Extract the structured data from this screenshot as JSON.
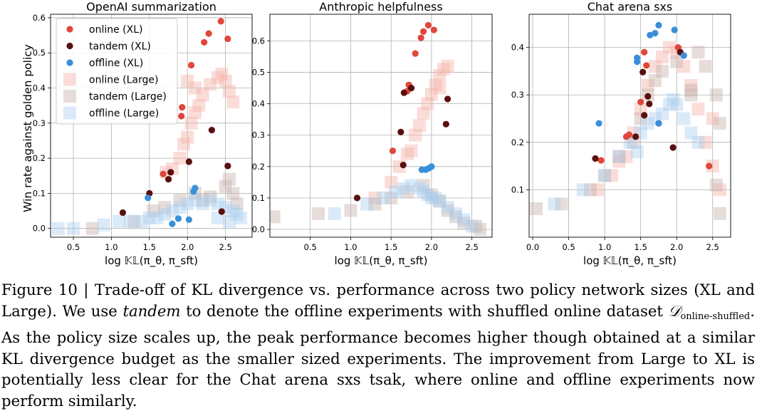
{
  "figure": {
    "ylabel": "Win rate against golden policy",
    "xlabel": "log 𝕂𝕃(π_θ, π_sft)",
    "legend_labels": [
      "online (XL)",
      "tandem (XL)",
      "offline (XL)",
      "online (Large)",
      "tandem (Large)",
      "offline (Large)"
    ],
    "colors": {
      "online_xl": "#e0473a",
      "tandem_xl": "#5a0f0f",
      "offline_xl": "#3a8fd9",
      "online_large": "#f5b3aa",
      "tandem_large": "#c7b3ad",
      "offline_large": "#a9cdef"
    }
  },
  "chart_data": [
    {
      "type": "scatter",
      "title": "OpenAI summarization",
      "xlim": [
        0.2,
        2.85
      ],
      "ylim": [
        -0.025,
        0.61
      ],
      "xticks": [
        0.5,
        1.0,
        1.5,
        2.0,
        2.5
      ],
      "yticks": [
        0.0,
        0.1,
        0.2,
        0.3,
        0.4,
        0.5,
        0.6
      ],
      "grid": true,
      "legend": "top-left",
      "series": [
        {
          "name": "online (Large)",
          "key": "online_large",
          "marker": "square",
          "points": [
            [
              1.72,
              0.16
            ],
            [
              1.8,
              0.17
            ],
            [
              1.9,
              0.2
            ],
            [
              1.95,
              0.24
            ],
            [
              2.0,
              0.26
            ],
            [
              2.05,
              0.3
            ],
            [
              2.1,
              0.33
            ],
            [
              2.15,
              0.35
            ],
            [
              2.2,
              0.38
            ],
            [
              2.3,
              0.41
            ],
            [
              2.4,
              0.43
            ],
            [
              2.45,
              0.44
            ],
            [
              2.5,
              0.42
            ],
            [
              2.55,
              0.39
            ],
            [
              2.6,
              0.36
            ],
            [
              2.0,
              0.42
            ],
            [
              2.1,
              0.4
            ]
          ]
        },
        {
          "name": "tandem (Large)",
          "key": "tandem_large",
          "marker": "square",
          "points": [
            [
              0.75,
              0.0
            ],
            [
              1.3,
              0.02
            ],
            [
              1.55,
              0.05
            ],
            [
              1.7,
              0.06
            ],
            [
              1.9,
              0.08
            ],
            [
              2.1,
              0.1
            ],
            [
              2.3,
              0.09
            ],
            [
              2.5,
              0.12
            ],
            [
              2.55,
              0.14
            ],
            [
              2.6,
              0.1
            ],
            [
              2.65,
              0.07
            ],
            [
              2.2,
              0.08
            ]
          ]
        },
        {
          "name": "offline (Large)",
          "key": "offline_large",
          "marker": "square",
          "points": [
            [
              0.3,
              0.0
            ],
            [
              0.5,
              0.0
            ],
            [
              0.9,
              0.01
            ],
            [
              1.1,
              0.02
            ],
            [
              1.25,
              0.02
            ],
            [
              1.4,
              0.02
            ],
            [
              1.5,
              0.03
            ],
            [
              1.6,
              0.03
            ],
            [
              1.7,
              0.04
            ],
            [
              1.8,
              0.05
            ],
            [
              1.9,
              0.06
            ],
            [
              2.0,
              0.07
            ],
            [
              2.1,
              0.08
            ],
            [
              2.2,
              0.07
            ],
            [
              2.3,
              0.08
            ],
            [
              2.4,
              0.07
            ],
            [
              2.5,
              0.06
            ],
            [
              2.6,
              0.05
            ],
            [
              2.65,
              0.04
            ],
            [
              2.7,
              0.03
            ],
            [
              2.55,
              0.02
            ],
            [
              2.4,
              0.03
            ]
          ]
        },
        {
          "name": "online (XL)",
          "key": "online_xl",
          "marker": "circle",
          "points": [
            [
              1.68,
              0.155
            ],
            [
              1.92,
              0.32
            ],
            [
              1.93,
              0.345
            ],
            [
              2.05,
              0.465
            ],
            [
              2.22,
              0.53
            ],
            [
              2.28,
              0.555
            ],
            [
              2.44,
              0.59
            ],
            [
              2.53,
              0.54
            ]
          ]
        },
        {
          "name": "tandem (XL)",
          "key": "tandem_xl",
          "marker": "circle",
          "points": [
            [
              1.15,
              0.045
            ],
            [
              1.5,
              0.1
            ],
            [
              1.75,
              0.14
            ],
            [
              1.78,
              0.16
            ],
            [
              2.02,
              0.19
            ],
            [
              2.32,
              0.28
            ],
            [
              2.45,
              0.048
            ],
            [
              2.53,
              0.178
            ]
          ]
        },
        {
          "name": "offline (XL)",
          "key": "offline_xl",
          "marker": "circle",
          "points": [
            [
              1.48,
              0.087
            ],
            [
              1.8,
              0.013
            ],
            [
              1.88,
              0.028
            ],
            [
              2.02,
              0.025
            ],
            [
              2.08,
              0.105
            ],
            [
              2.1,
              0.115
            ]
          ]
        }
      ]
    },
    {
      "type": "scatter",
      "title": "Anthropic helpfulness",
      "xlim": [
        0.0,
        2.75
      ],
      "ylim": [
        -0.025,
        0.685
      ],
      "xticks": [
        0.5,
        1.0,
        1.5,
        2.0,
        2.5
      ],
      "yticks": [
        0.0,
        0.1,
        0.2,
        0.3,
        0.4,
        0.5,
        0.6
      ],
      "grid": true,
      "series": [
        {
          "name": "online (Large)",
          "key": "online_large",
          "marker": "square",
          "points": [
            [
              1.3,
              0.1
            ],
            [
              1.5,
              0.15
            ],
            [
              1.6,
              0.2
            ],
            [
              1.7,
              0.24
            ],
            [
              1.8,
              0.3
            ],
            [
              1.85,
              0.33
            ],
            [
              1.9,
              0.37
            ],
            [
              1.95,
              0.4
            ],
            [
              2.0,
              0.43
            ],
            [
              2.05,
              0.46
            ],
            [
              2.1,
              0.49
            ],
            [
              2.15,
              0.51
            ],
            [
              2.2,
              0.52
            ],
            [
              2.1,
              0.45
            ],
            [
              1.75,
              0.25
            ]
          ]
        },
        {
          "name": "tandem (Large)",
          "key": "tandem_large",
          "marker": "square",
          "points": [
            [
              0.05,
              0.04
            ],
            [
              0.6,
              0.05
            ],
            [
              1.0,
              0.06
            ],
            [
              1.3,
              0.08
            ],
            [
              1.5,
              0.1
            ],
            [
              1.7,
              0.12
            ],
            [
              1.9,
              0.14
            ],
            [
              2.0,
              0.11
            ],
            [
              2.1,
              0.09
            ],
            [
              2.2,
              0.06
            ],
            [
              2.3,
              0.04
            ],
            [
              2.4,
              0.02
            ],
            [
              2.55,
              0.01
            ],
            [
              2.6,
              0.0
            ]
          ]
        },
        {
          "name": "offline (Large)",
          "key": "offline_large",
          "marker": "square",
          "points": [
            [
              0.8,
              0.05
            ],
            [
              1.2,
              0.08
            ],
            [
              1.4,
              0.1
            ],
            [
              1.55,
              0.12
            ],
            [
              1.65,
              0.13
            ],
            [
              1.75,
              0.14
            ],
            [
              1.85,
              0.13
            ],
            [
              1.9,
              0.12
            ],
            [
              1.95,
              0.11
            ],
            [
              2.0,
              0.1
            ],
            [
              2.05,
              0.1
            ],
            [
              2.1,
              0.09
            ],
            [
              2.2,
              0.07
            ],
            [
              2.3,
              0.05
            ],
            [
              2.4,
              0.03
            ],
            [
              2.5,
              0.01
            ]
          ]
        },
        {
          "name": "online (XL)",
          "key": "online_xl",
          "marker": "circle",
          "points": [
            [
              1.52,
              0.25
            ],
            [
              1.7,
              0.44
            ],
            [
              1.72,
              0.46
            ],
            [
              1.8,
              0.56
            ],
            [
              1.87,
              0.61
            ],
            [
              1.9,
              0.63
            ],
            [
              1.96,
              0.65
            ],
            [
              2.03,
              0.635
            ]
          ]
        },
        {
          "name": "tandem (XL)",
          "key": "tandem_xl",
          "marker": "circle",
          "points": [
            [
              1.08,
              0.1
            ],
            [
              1.62,
              0.31
            ],
            [
              1.65,
              0.205
            ],
            [
              1.66,
              0.435
            ],
            [
              1.75,
              0.45
            ],
            [
              2.18,
              0.335
            ],
            [
              2.2,
              0.415
            ]
          ]
        },
        {
          "name": "offline (XL)",
          "key": "offline_xl",
          "marker": "circle",
          "points": [
            [
              1.88,
              0.19
            ],
            [
              1.93,
              0.19
            ],
            [
              1.97,
              0.195
            ],
            [
              2.0,
              0.2
            ]
          ]
        }
      ]
    },
    {
      "type": "scatter",
      "title": "Chat arena sxs",
      "xlim": [
        -0.05,
        2.75
      ],
      "ylim": [
        0.0,
        0.47
      ],
      "xticks": [
        0.0,
        0.5,
        1.0,
        1.5,
        2.0,
        2.5
      ],
      "yticks": [
        0.1,
        0.2,
        0.3,
        0.4
      ],
      "grid": true,
      "series": [
        {
          "name": "online (Large)",
          "key": "online_large",
          "marker": "square",
          "points": [
            [
              0.9,
              0.1
            ],
            [
              1.1,
              0.13
            ],
            [
              1.3,
              0.17
            ],
            [
              1.4,
              0.22
            ],
            [
              1.5,
              0.27
            ],
            [
              1.6,
              0.32
            ],
            [
              1.7,
              0.36
            ],
            [
              1.8,
              0.38
            ],
            [
              1.9,
              0.4
            ],
            [
              2.0,
              0.39
            ],
            [
              2.1,
              0.36
            ],
            [
              2.2,
              0.32
            ],
            [
              2.3,
              0.27
            ],
            [
              2.4,
              0.2
            ],
            [
              2.5,
              0.15
            ],
            [
              2.6,
              0.1
            ],
            [
              2.5,
              0.25
            ],
            [
              1.2,
              0.16
            ]
          ]
        },
        {
          "name": "tandem (Large)",
          "key": "tandem_large",
          "marker": "square",
          "points": [
            [
              0.05,
              0.06
            ],
            [
              0.4,
              0.07
            ],
            [
              0.8,
              0.1
            ],
            [
              1.0,
              0.13
            ],
            [
              1.2,
              0.17
            ],
            [
              1.4,
              0.2
            ],
            [
              1.5,
              0.25
            ],
            [
              1.6,
              0.3
            ],
            [
              1.7,
              0.33
            ],
            [
              1.8,
              0.35
            ],
            [
              2.0,
              0.37
            ],
            [
              2.3,
              0.39
            ],
            [
              2.4,
              0.36
            ],
            [
              2.55,
              0.3
            ],
            [
              2.6,
              0.24
            ],
            [
              2.2,
              0.3
            ],
            [
              2.6,
              0.05
            ],
            [
              2.55,
              0.11
            ],
            [
              2.2,
              0.31
            ]
          ]
        },
        {
          "name": "offline (Large)",
          "key": "offline_large",
          "marker": "square",
          "points": [
            [
              0.3,
              0.07
            ],
            [
              0.7,
              0.1
            ],
            [
              1.0,
              0.13
            ],
            [
              1.2,
              0.17
            ],
            [
              1.35,
              0.2
            ],
            [
              1.5,
              0.22
            ],
            [
              1.6,
              0.24
            ],
            [
              1.7,
              0.25
            ],
            [
              1.8,
              0.26
            ],
            [
              1.9,
              0.28
            ],
            [
              2.0,
              0.28
            ],
            [
              2.1,
              0.25
            ],
            [
              2.2,
              0.22
            ],
            [
              2.3,
              0.2
            ],
            [
              1.45,
              0.18
            ],
            [
              1.95,
              0.29
            ]
          ]
        },
        {
          "name": "online (XL)",
          "key": "online_xl",
          "marker": "circle",
          "points": [
            [
              0.95,
              0.162
            ],
            [
              1.3,
              0.212
            ],
            [
              1.34,
              0.216
            ],
            [
              1.5,
              0.285
            ],
            [
              1.55,
              0.39
            ],
            [
              1.58,
              0.362
            ],
            [
              2.02,
              0.4
            ],
            [
              2.45,
              0.15
            ]
          ]
        },
        {
          "name": "tandem (XL)",
          "key": "tandem_xl",
          "marker": "circle",
          "points": [
            [
              0.87,
              0.166
            ],
            [
              1.43,
              0.212
            ],
            [
              1.53,
              0.348
            ],
            [
              1.55,
              0.257
            ],
            [
              1.6,
              0.297
            ],
            [
              1.62,
              0.281
            ],
            [
              1.75,
              0.24
            ],
            [
              1.95,
              0.189
            ],
            [
              2.05,
              0.39
            ]
          ]
        },
        {
          "name": "offline (XL)",
          "key": "offline_xl",
          "marker": "circle",
          "points": [
            [
              0.92,
              0.24
            ],
            [
              1.45,
              0.37
            ],
            [
              1.45,
              0.378
            ],
            [
              1.63,
              0.426
            ],
            [
              1.7,
              0.43
            ],
            [
              1.75,
              0.447
            ],
            [
              1.75,
              0.24
            ],
            [
              1.97,
              0.437
            ],
            [
              2.1,
              0.383
            ]
          ]
        }
      ]
    }
  ],
  "caption": {
    "prefix": "Figure 10 | Trade-off of KL divergence vs.  performance across two policy network sizes (XL and Large). We use ",
    "tandem_word": "tandem",
    "middle": " to denote the offline experiments with shuffled online dataset ",
    "dataset_symbol": "𝒟",
    "dataset_subscript": "online-shuffled",
    "suffix": ". As the policy size scales up, the peak performance becomes higher though obtained at a similar KL divergence budget as the smaller sized experiments. The improvement from Large to XL is potentially less clear for the Chat arena sxs tsak, where online and offline experiments now perform similarly."
  }
}
